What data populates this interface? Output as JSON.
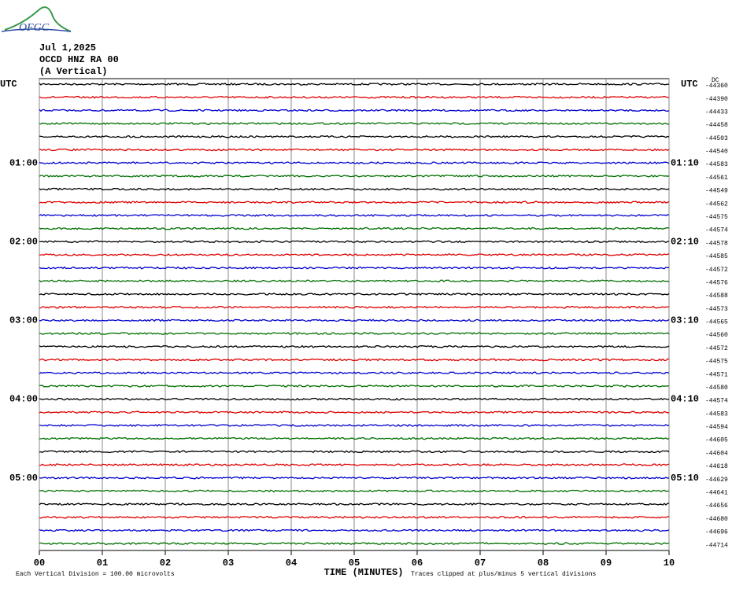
{
  "logo": "OFGC",
  "chart_data": {
    "type": "helicorder",
    "title": "Jul 1,2025",
    "subtitle": "OCCD HNZ RA 00",
    "component": "(A Vertical)",
    "xlabel": "TIME (MINUTES)",
    "xlim": [
      0,
      10
    ],
    "xticks": [
      {
        "value": 0,
        "label": "00"
      },
      {
        "value": 1,
        "label": "01"
      },
      {
        "value": 2,
        "label": "02"
      },
      {
        "value": 3,
        "label": "03"
      },
      {
        "value": 4,
        "label": "04"
      },
      {
        "value": 5,
        "label": "05"
      },
      {
        "value": 6,
        "label": "06"
      },
      {
        "value": 7,
        "label": "07"
      },
      {
        "value": 8,
        "label": "08"
      },
      {
        "value": 9,
        "label": "09"
      },
      10
    ],
    "grid": true,
    "colors": [
      "#000000",
      "#e00000",
      "#0000d0",
      "#007000"
    ],
    "dc_label": "DC",
    "left_labels": [
      "UTC",
      null,
      null,
      null,
      null,
      null,
      "01:00",
      null,
      null,
      null,
      null,
      null,
      "02:00",
      null,
      null,
      null,
      null,
      null,
      "03:00",
      null,
      null,
      null,
      null,
      null,
      "04:00",
      null,
      null,
      null,
      null,
      null,
      "05:00",
      null,
      null,
      null,
      null,
      null
    ],
    "right_labels": [
      "UTC",
      null,
      null,
      null,
      null,
      null,
      "01:10",
      null,
      null,
      null,
      null,
      null,
      "02:10",
      null,
      null,
      null,
      null,
      null,
      "03:10",
      null,
      null,
      null,
      null,
      null,
      "04:10",
      null,
      null,
      null,
      null,
      null,
      "05:10",
      null,
      null,
      null,
      null,
      null
    ],
    "offsets": [
      -44360,
      -44390,
      -44433,
      -44458,
      -44503,
      -44540,
      -44583,
      -44561,
      -44549,
      -44562,
      -44575,
      -44574,
      -44578,
      -44585,
      -44572,
      -44576,
      -44588,
      -44573,
      -44565,
      -44560,
      -44572,
      -44575,
      -44571,
      -44580,
      -44574,
      -44583,
      -44594,
      -44605,
      -44604,
      -44618,
      -44629,
      -44641,
      -44656,
      -44680,
      -44696,
      -44714
    ],
    "footnote": "Each Vertical Division =  100.00 microvolts",
    "note": "Traces clipped at plus/minus 5 vertical divisions"
  }
}
